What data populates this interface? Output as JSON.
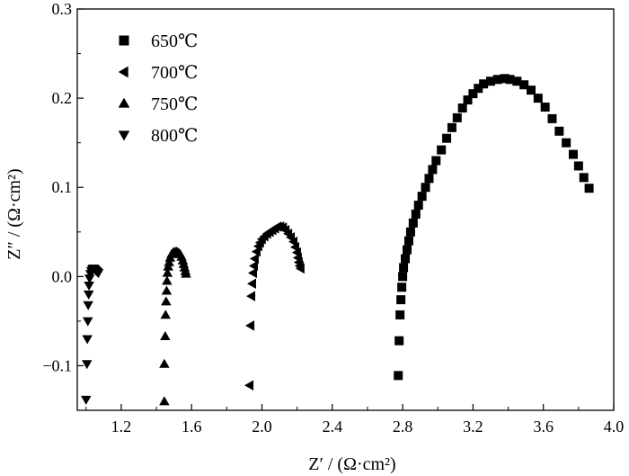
{
  "chart_data": {
    "type": "scatter",
    "xlabel": "Z′ / (Ω·cm²)",
    "ylabel": "Z″ / (Ω·cm²)",
    "xlim": [
      0.95,
      4.0
    ],
    "ylim": [
      -0.15,
      0.3
    ],
    "x_ticks": [
      "1.2",
      "1.6",
      "2.0",
      "2.4",
      "2.8",
      "3.2",
      "3.6",
      "4.0"
    ],
    "y_ticks": [
      "−0.1",
      "0.0",
      "0.1",
      "0.2",
      "0.3"
    ],
    "legend_position": "top-left",
    "series": [
      {
        "name": "650℃",
        "marker": "square",
        "points": [
          [
            2.775,
            -0.111
          ],
          [
            2.78,
            -0.072
          ],
          [
            2.785,
            -0.043
          ],
          [
            2.79,
            -0.026
          ],
          [
            2.795,
            -0.012
          ],
          [
            2.8,
            0.0
          ],
          [
            2.805,
            0.01
          ],
          [
            2.815,
            0.02
          ],
          [
            2.825,
            0.03
          ],
          [
            2.835,
            0.04
          ],
          [
            2.845,
            0.05
          ],
          [
            2.86,
            0.06
          ],
          [
            2.875,
            0.07
          ],
          [
            2.89,
            0.08
          ],
          [
            2.91,
            0.09
          ],
          [
            2.93,
            0.1
          ],
          [
            2.95,
            0.11
          ],
          [
            2.97,
            0.12
          ],
          [
            2.99,
            0.13
          ],
          [
            3.02,
            0.142
          ],
          [
            3.05,
            0.155
          ],
          [
            3.08,
            0.167
          ],
          [
            3.11,
            0.178
          ],
          [
            3.14,
            0.189
          ],
          [
            3.17,
            0.198
          ],
          [
            3.2,
            0.205
          ],
          [
            3.23,
            0.211
          ],
          [
            3.26,
            0.216
          ],
          [
            3.3,
            0.219
          ],
          [
            3.34,
            0.221
          ],
          [
            3.38,
            0.222
          ],
          [
            3.41,
            0.221
          ],
          [
            3.45,
            0.219
          ],
          [
            3.49,
            0.215
          ],
          [
            3.53,
            0.209
          ],
          [
            3.57,
            0.2
          ],
          [
            3.61,
            0.19
          ],
          [
            3.65,
            0.177
          ],
          [
            3.69,
            0.163
          ],
          [
            3.73,
            0.15
          ],
          [
            3.77,
            0.137
          ],
          [
            3.8,
            0.124
          ],
          [
            3.83,
            0.111
          ],
          [
            3.86,
            0.099
          ]
        ]
      },
      {
        "name": "700℃",
        "marker": "triangle-left",
        "points": [
          [
            1.93,
            -0.122
          ],
          [
            1.935,
            -0.055
          ],
          [
            1.94,
            -0.022
          ],
          [
            1.945,
            -0.008
          ],
          [
            1.95,
            0.004
          ],
          [
            1.955,
            0.012
          ],
          [
            1.96,
            0.02
          ],
          [
            1.97,
            0.028
          ],
          [
            1.98,
            0.034
          ],
          [
            1.99,
            0.038
          ],
          [
            2.0,
            0.042
          ],
          [
            2.015,
            0.045
          ],
          [
            2.03,
            0.048
          ],
          [
            2.045,
            0.05
          ],
          [
            2.06,
            0.052
          ],
          [
            2.075,
            0.054
          ],
          [
            2.09,
            0.056
          ],
          [
            2.105,
            0.056
          ],
          [
            2.12,
            0.055
          ],
          [
            2.135,
            0.052
          ],
          [
            2.15,
            0.048
          ],
          [
            2.165,
            0.044
          ],
          [
            2.18,
            0.039
          ],
          [
            2.19,
            0.033
          ],
          [
            2.2,
            0.027
          ],
          [
            2.205,
            0.021
          ],
          [
            2.21,
            0.016
          ],
          [
            2.215,
            0.012
          ],
          [
            2.22,
            0.009
          ]
        ]
      },
      {
        "name": "750℃",
        "marker": "triangle-up",
        "points": [
          [
            1.445,
            -0.14
          ],
          [
            1.445,
            -0.098
          ],
          [
            1.45,
            -0.067
          ],
          [
            1.452,
            -0.043
          ],
          [
            1.455,
            -0.028
          ],
          [
            1.458,
            -0.016
          ],
          [
            1.46,
            -0.005
          ],
          [
            1.463,
            0.004
          ],
          [
            1.467,
            0.011
          ],
          [
            1.472,
            0.016
          ],
          [
            1.478,
            0.021
          ],
          [
            1.486,
            0.025
          ],
          [
            1.495,
            0.027
          ],
          [
            1.505,
            0.028
          ],
          [
            1.515,
            0.028
          ],
          [
            1.525,
            0.027
          ],
          [
            1.535,
            0.025
          ],
          [
            1.543,
            0.022
          ],
          [
            1.55,
            0.018
          ],
          [
            1.555,
            0.014
          ],
          [
            1.56,
            0.01
          ],
          [
            1.565,
            0.006
          ],
          [
            1.568,
            0.003
          ]
        ]
      },
      {
        "name": "800℃",
        "marker": "triangle-down",
        "points": [
          [
            1.0,
            -0.138
          ],
          [
            1.005,
            -0.098
          ],
          [
            1.007,
            -0.07
          ],
          [
            1.01,
            -0.05
          ],
          [
            1.012,
            -0.032
          ],
          [
            1.015,
            -0.02
          ],
          [
            1.017,
            -0.01
          ],
          [
            1.02,
            -0.002
          ],
          [
            1.025,
            0.003
          ],
          [
            1.03,
            0.006
          ],
          [
            1.035,
            0.008
          ],
          [
            1.04,
            0.009
          ],
          [
            1.045,
            0.009
          ],
          [
            1.05,
            0.008
          ],
          [
            1.055,
            0.007
          ],
          [
            1.06,
            0.006
          ],
          [
            1.065,
            0.005
          ],
          [
            1.07,
            0.004
          ]
        ]
      }
    ]
  }
}
